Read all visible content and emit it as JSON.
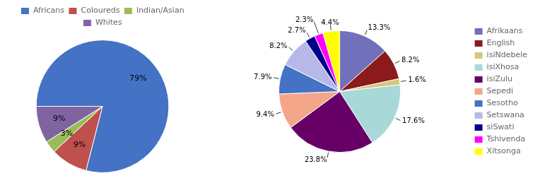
{
  "chart_data": [
    {
      "type": "pie",
      "categories": [
        "Africans",
        "Coloureds",
        "Indian/Asian",
        "Whites"
      ],
      "values": [
        79,
        9,
        3,
        9
      ],
      "value_labels": [
        "79%",
        "9%",
        "3%",
        "9%"
      ],
      "colors": [
        "#4472C4",
        "#C0504D",
        "#9BBB59",
        "#8064A2"
      ],
      "data_labels": true,
      "legend": "top"
    },
    {
      "type": "pie",
      "categories": [
        "Afrikaans",
        "English",
        "isiNdebele",
        "isiXhosa",
        "isiZulu",
        "Sepedi",
        "Sesotho",
        "Setswana",
        "siSwati",
        "Tshivenda",
        "Xitsonga"
      ],
      "values": [
        13.3,
        8.2,
        1.6,
        17.6,
        23.8,
        9.4,
        7.9,
        8.2,
        2.7,
        2.3,
        4.4
      ],
      "value_labels": [
        "13.3%",
        "8.2%",
        "1.6%",
        "17.6%",
        "23.8%",
        "9.4%",
        "7.9%",
        "8.2%",
        "2.7%",
        "2.3%",
        "4.4%"
      ],
      "colors": [
        "#7070BB",
        "#8B1A1A",
        "#D4C87A",
        "#A8D8D8",
        "#660066",
        "#F4A58A",
        "#4472C4",
        "#B8B8E8",
        "#00008B",
        "#FF00FF",
        "#FFFF00"
      ],
      "data_labels": true,
      "legend": "right"
    }
  ]
}
